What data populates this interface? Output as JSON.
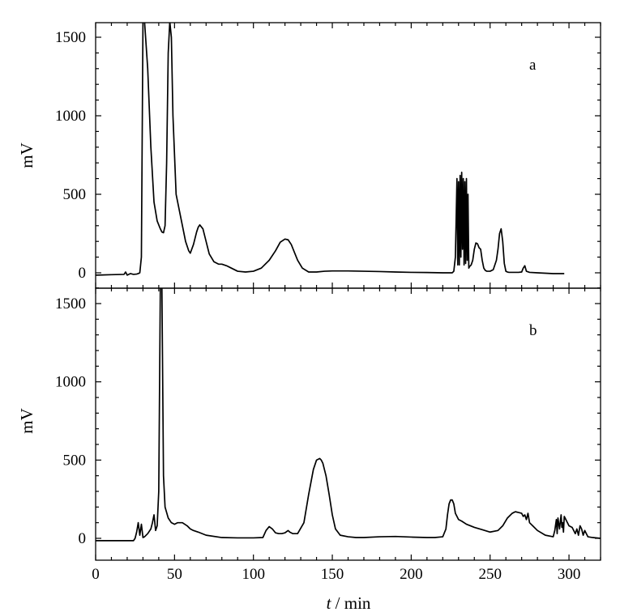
{
  "chart_data": [
    {
      "type": "line",
      "panel_label": "a",
      "ylabel": "mV",
      "xlim": [
        0,
        320
      ],
      "ylim": [
        -90,
        1600
      ],
      "yticks": [
        0,
        500,
        1000,
        1500
      ],
      "ytick_labels": [
        "0",
        "500",
        "1000",
        "1500"
      ],
      "series": [
        {
          "x": [
            0,
            10,
            18,
            19,
            20,
            22,
            24,
            26,
            27,
            28,
            29,
            30,
            31,
            33,
            35,
            37,
            39,
            41,
            42,
            43,
            44,
            45,
            46,
            47,
            48,
            49,
            51,
            53,
            55,
            57,
            59,
            60,
            62,
            64,
            65,
            66,
            68,
            70,
            72,
            75,
            78,
            80,
            83,
            86,
            90,
            95,
            100,
            105,
            110,
            114,
            117,
            120,
            122,
            124,
            126,
            128,
            131,
            135,
            140,
            145,
            150,
            160,
            170,
            180,
            190,
            200,
            210,
            220,
            226,
            227,
            228,
            229,
            229.5,
            230,
            230.5,
            231,
            231.5,
            232,
            232.5,
            233,
            233.5,
            234,
            234.5,
            235,
            235.5,
            236,
            236.5,
            237,
            238,
            239,
            240,
            241,
            242,
            243,
            244,
            245,
            246,
            247,
            248,
            250,
            252,
            254,
            255,
            256,
            257,
            258,
            259,
            260,
            261,
            262,
            263,
            265,
            268,
            270,
            271,
            272,
            273,
            275,
            280,
            290,
            297
          ],
          "y": [
            -15,
            -12,
            -10,
            5,
            -15,
            -5,
            -10,
            -8,
            -5,
            0,
            100,
            1600,
            1600,
            1300,
            800,
            450,
            330,
            280,
            260,
            255,
            300,
            700,
            1400,
            1600,
            1500,
            1000,
            500,
            400,
            300,
            200,
            140,
            125,
            180,
            260,
            290,
            305,
            280,
            200,
            120,
            70,
            55,
            55,
            45,
            30,
            10,
            5,
            10,
            30,
            80,
            140,
            195,
            215,
            210,
            180,
            130,
            80,
            30,
            5,
            5,
            10,
            12,
            12,
            10,
            8,
            5,
            3,
            2,
            0,
            0,
            10,
            100,
            600,
            50,
            580,
            50,
            620,
            100,
            640,
            150,
            600,
            50,
            580,
            60,
            600,
            80,
            500,
            30,
            40,
            50,
            80,
            150,
            190,
            185,
            160,
            150,
            80,
            30,
            15,
            10,
            10,
            20,
            80,
            150,
            250,
            280,
            200,
            60,
            10,
            5,
            3,
            3,
            3,
            3,
            5,
            30,
            45,
            10,
            3,
            0,
            -5,
            -5
          ]
        }
      ]
    },
    {
      "type": "line",
      "panel_label": "b",
      "xlabel": "t / min",
      "ylabel": "mV",
      "xlim": [
        0,
        320
      ],
      "ylim": [
        -90,
        1600
      ],
      "xticks": [
        0,
        50,
        100,
        150,
        200,
        250,
        300
      ],
      "xtick_labels": [
        "0",
        "50",
        "100",
        "150",
        "200",
        "250",
        "300"
      ],
      "yticks": [
        0,
        500,
        1000,
        1500
      ],
      "ytick_labels": [
        "0",
        "500",
        "1000",
        "1500"
      ],
      "series": [
        {
          "x": [
            0,
            10,
            20,
            24,
            25,
            26,
            27,
            28,
            29,
            30,
            31,
            33,
            35,
            36,
            37,
            38,
            39,
            40,
            41,
            42,
            43,
            44,
            46,
            48,
            50,
            52,
            55,
            58,
            60,
            62,
            65,
            70,
            80,
            90,
            100,
            106,
            108,
            110,
            112,
            114,
            116,
            118,
            120,
            122,
            123,
            125,
            128,
            132,
            135,
            138,
            140,
            142,
            143,
            144,
            146,
            148,
            150,
            152,
            155,
            160,
            165,
            170,
            180,
            190,
            200,
            210,
            215,
            220,
            222,
            223,
            224,
            225,
            226,
            227,
            228,
            230,
            232,
            235,
            240,
            245,
            250,
            255,
            258,
            261,
            264,
            266,
            268,
            270,
            271,
            272,
            273,
            274,
            275,
            277,
            280,
            285,
            290,
            291,
            292,
            292.5,
            293,
            294,
            295,
            295.5,
            296,
            296.5,
            297,
            298,
            299,
            300,
            302,
            303,
            304,
            305,
            306,
            307,
            308,
            309,
            310,
            312,
            315,
            320
          ],
          "y": [
            -15,
            -15,
            -15,
            -15,
            0,
            40,
            100,
            20,
            90,
            5,
            10,
            30,
            60,
            100,
            150,
            50,
            80,
            300,
            1600,
            1600,
            400,
            200,
            130,
            100,
            90,
            100,
            100,
            80,
            60,
            50,
            40,
            20,
            5,
            3,
            3,
            5,
            50,
            75,
            60,
            35,
            30,
            30,
            35,
            50,
            40,
            30,
            30,
            100,
            280,
            440,
            500,
            510,
            500,
            480,
            400,
            280,
            150,
            60,
            20,
            10,
            5,
            5,
            10,
            12,
            8,
            5,
            5,
            10,
            60,
            150,
            220,
            245,
            245,
            220,
            160,
            120,
            110,
            90,
            70,
            55,
            40,
            50,
            80,
            130,
            160,
            170,
            165,
            160,
            140,
            150,
            120,
            160,
            100,
            80,
            50,
            20,
            10,
            50,
            120,
            30,
            130,
            60,
            150,
            70,
            100,
            40,
            140,
            120,
            100,
            80,
            70,
            50,
            30,
            60,
            20,
            80,
            60,
            20,
            50,
            10,
            5,
            0
          ]
        }
      ]
    }
  ]
}
